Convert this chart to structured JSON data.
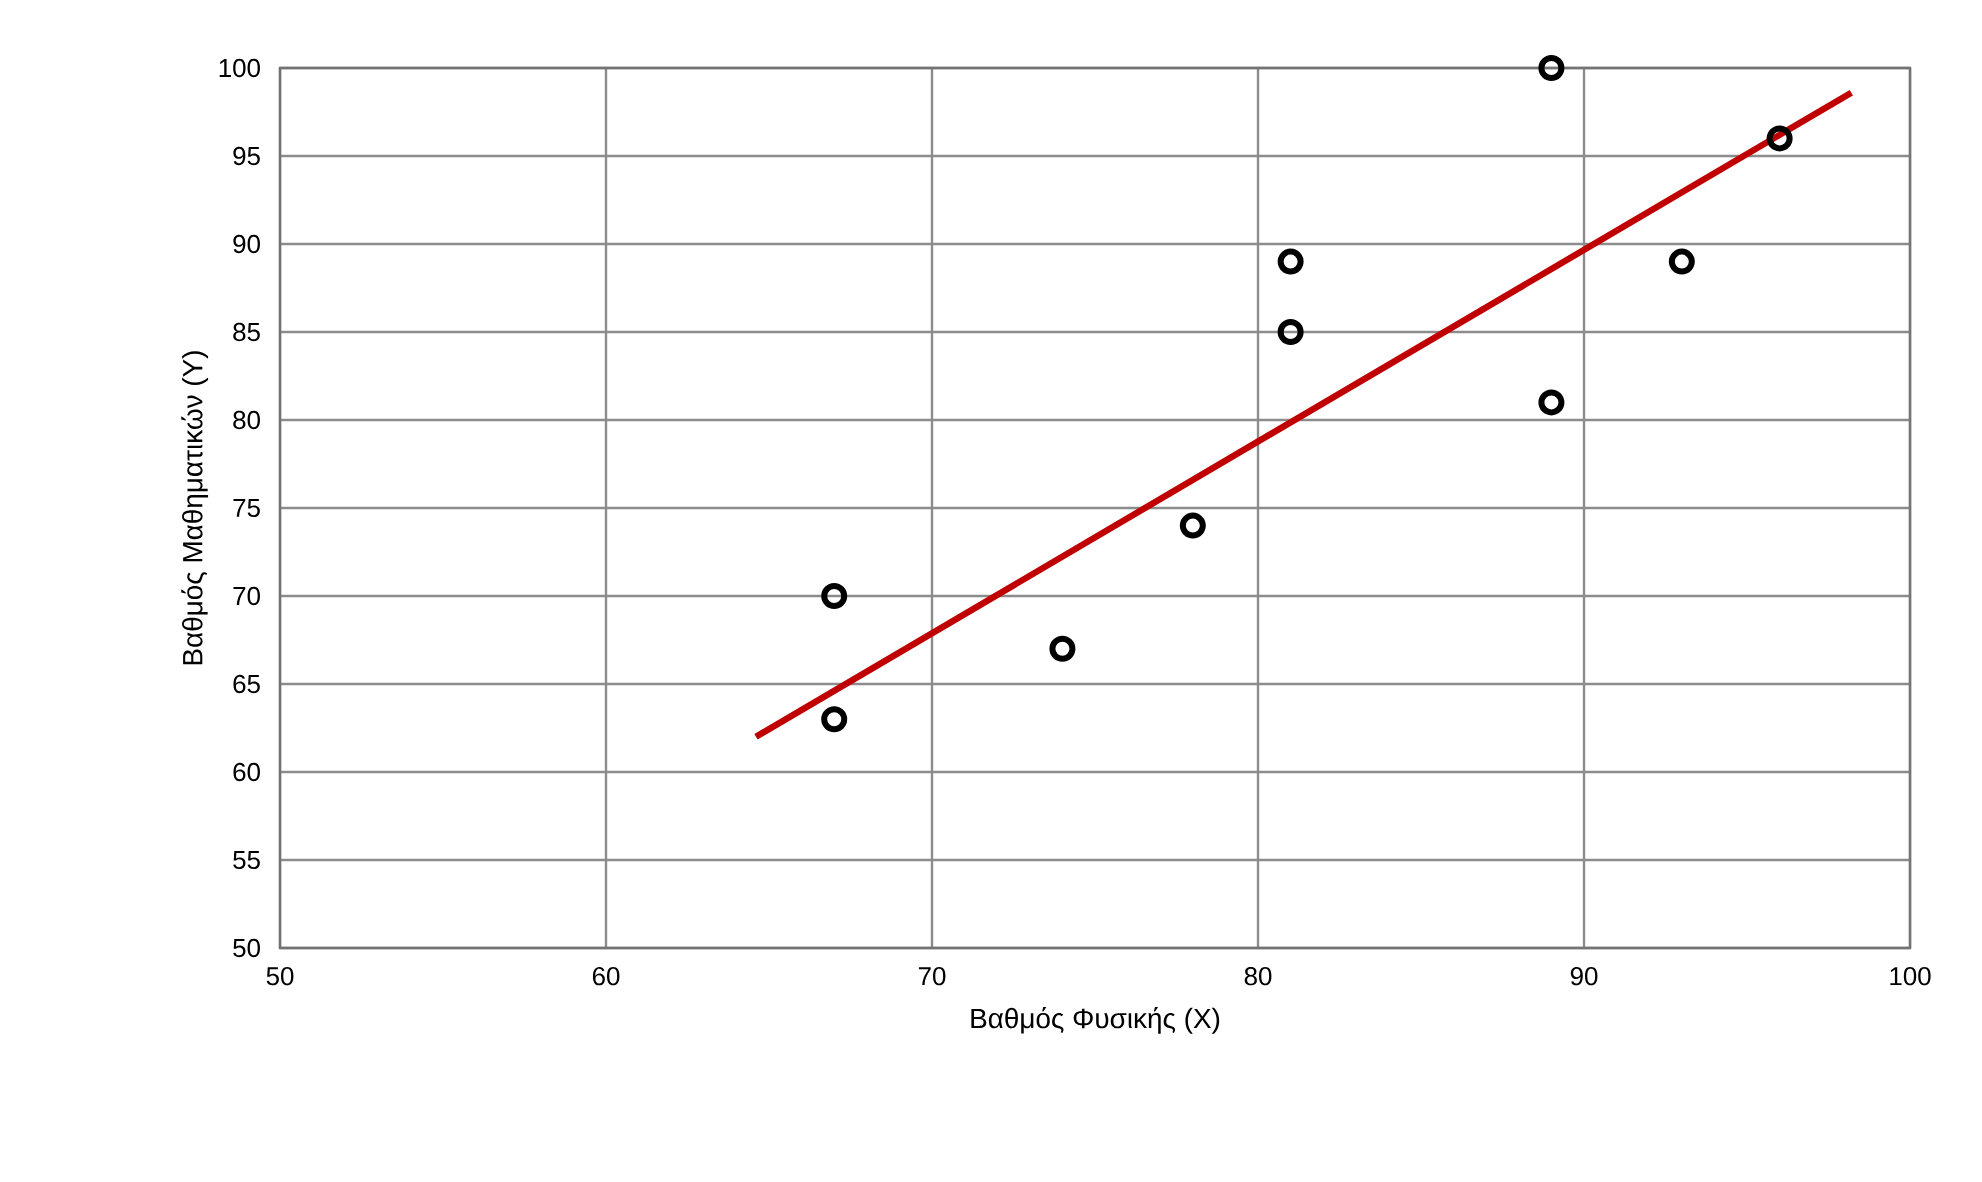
{
  "chart_data": {
    "type": "scatter",
    "xlabel": "Βαθμός Φυσικής (X)",
    "ylabel": "Βαθμός Μαθηματικών (Y)",
    "xlim": [
      50,
      100
    ],
    "ylim": [
      50,
      100
    ],
    "xticks": [
      50,
      60,
      70,
      80,
      90,
      100
    ],
    "yticks": [
      50,
      55,
      60,
      65,
      70,
      75,
      80,
      85,
      90,
      95,
      100
    ],
    "grid": true,
    "series": [
      {
        "marker": "circle",
        "color": "#000000",
        "x": [
          67,
          67,
          74,
          78,
          81,
          81,
          89,
          89,
          93,
          96
        ],
        "values": [
          70,
          63,
          67,
          74,
          89,
          85,
          100,
          81,
          89,
          96
        ]
      },
      {
        "type": "line",
        "marker": "none",
        "color": "#c00000",
        "x": [
          64.6,
          98.2
        ],
        "values": [
          62,
          98.6
        ]
      }
    ]
  }
}
